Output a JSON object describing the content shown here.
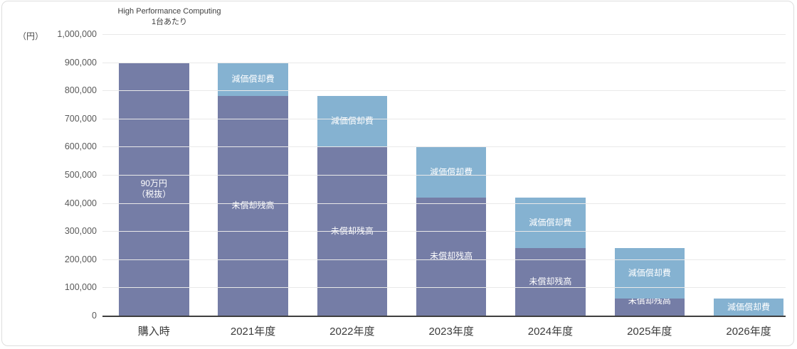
{
  "chart_data": {
    "type": "bar",
    "stacked": true,
    "title": "High Performance Computing",
    "subtitle": "1台あたり",
    "unit": "（円）",
    "categories": [
      "購入時",
      "2021年度",
      "2022年度",
      "2023年度",
      "2024年度",
      "2025年度",
      "2026年度"
    ],
    "series": [
      {
        "name": "未償却残高",
        "color": "#757da6",
        "values": [
          900000,
          780000,
          600000,
          420000,
          240000,
          60000,
          0
        ],
        "labels": [
          [
            "90万円",
            "（税抜）"
          ],
          [
            "未償却残高"
          ],
          [
            "未償却残高"
          ],
          [
            "未償却残高"
          ],
          [
            "未償却残高"
          ],
          [
            "未償却残高"
          ],
          null
        ]
      },
      {
        "name": "減価償却費",
        "color": "#85b2d1",
        "values": [
          0,
          120000,
          180000,
          180000,
          180000,
          180000,
          60000
        ],
        "labels": [
          null,
          [
            "減価償却費"
          ],
          [
            "減価償却費"
          ],
          [
            "減価償却費"
          ],
          [
            "減価償却費"
          ],
          [
            "減価償却費"
          ],
          [
            "減価償却費"
          ]
        ]
      }
    ],
    "ylim": [
      0,
      1000000
    ],
    "yticks": [
      0,
      100000,
      200000,
      300000,
      400000,
      500000,
      600000,
      700000,
      800000,
      900000,
      1000000
    ],
    "ytick_labels": [
      "0",
      "100,000",
      "200,000",
      "300,000",
      "400,000",
      "500,000",
      "600,000",
      "700,000",
      "800,000",
      "900,000",
      "1,000,000"
    ],
    "grid": true,
    "legend": "none",
    "colors": {
      "gridline": "#e9e9e9",
      "axis_line": "#3f3f3f",
      "tick_text": "#595959",
      "category_text": "#3a3a3a",
      "bar_label_text": "#ffffff",
      "border": "#dedede"
    }
  }
}
